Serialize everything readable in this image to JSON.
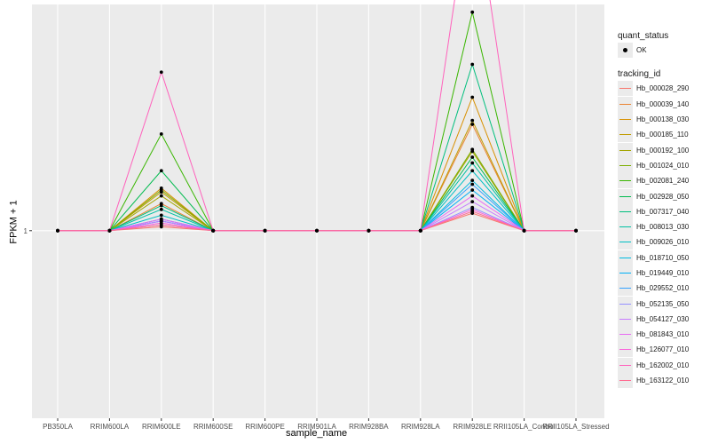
{
  "chart_data": {
    "type": "line",
    "xlabel": "sample_name",
    "ylabel": "FPKM + 1",
    "categories": [
      "PB350LA",
      "RRIM600LA",
      "RRIM600LE",
      "RRIM600SE",
      "RRIM600PE",
      "RRIM901LA",
      "RRIM928BA",
      "RRIM928LA",
      "RRIM928LE",
      "RRII105LA_Control",
      "RRII105LA_Stressed"
    ],
    "y_ticks": [
      {
        "value": 1,
        "label": "1"
      }
    ],
    "ylim": [
      0.03,
      2.17
    ],
    "grid": true,
    "legends": {
      "quant_status": {
        "title": "quant_status",
        "entries": [
          "OK"
        ]
      },
      "tracking_id": {
        "title": "tracking_id",
        "entries": [
          "Hb_000028_290",
          "Hb_000039_140",
          "Hb_000138_030",
          "Hb_000185_110",
          "Hb_000192_100",
          "Hb_001024_010",
          "Hb_002081_240",
          "Hb_002928_050",
          "Hb_007317_040",
          "Hb_008013_030",
          "Hb_009026_010",
          "Hb_018710_050",
          "Hb_019449_010",
          "Hb_029552_010",
          "Hb_052135_050",
          "Hb_054127_030",
          "Hb_081843_010",
          "Hb_126077_010",
          "Hb_162002_010",
          "Hb_163122_010"
        ]
      }
    },
    "legend_position": "right",
    "series": [
      {
        "name": "Hb_000028_290",
        "color": "#F8766D",
        "values": [
          1,
          1,
          1.02,
          1,
          1,
          1,
          1,
          1,
          1.09,
          1,
          1
        ]
      },
      {
        "name": "Hb_000039_140",
        "color": "#EA8331",
        "values": [
          1,
          1,
          1.14,
          1,
          1,
          1,
          1,
          1,
          1.55,
          1,
          1
        ]
      },
      {
        "name": "Hb_000138_030",
        "color": "#D89000",
        "values": [
          1,
          1,
          1.22,
          1,
          1,
          1,
          1,
          1,
          1.69,
          1,
          1
        ]
      },
      {
        "name": "Hb_000185_110",
        "color": "#C09B00",
        "values": [
          1,
          1,
          1.2,
          1,
          1,
          1,
          1,
          1,
          1.57,
          1,
          1
        ]
      },
      {
        "name": "Hb_000192_100",
        "color": "#A3A500",
        "values": [
          1,
          1,
          1.18,
          1,
          1,
          1,
          1,
          1,
          1.41,
          1,
          1
        ]
      },
      {
        "name": "Hb_001024_010",
        "color": "#7CAE00",
        "values": [
          1,
          1,
          1.21,
          1,
          1,
          1,
          1,
          1,
          1.42,
          1,
          1
        ]
      },
      {
        "name": "Hb_002081_240",
        "color": "#39B600",
        "values": [
          1,
          1,
          1.5,
          1,
          1,
          1,
          1,
          1,
          2.13,
          1,
          1
        ]
      },
      {
        "name": "Hb_002928_050",
        "color": "#00BB4E",
        "values": [
          1,
          1,
          1.31,
          1,
          1,
          1,
          1,
          1,
          1.38,
          1,
          1
        ]
      },
      {
        "name": "Hb_007317_040",
        "color": "#00BF7D",
        "values": [
          1,
          1,
          1.13,
          1,
          1,
          1,
          1,
          1,
          1.86,
          1,
          1
        ]
      },
      {
        "name": "Hb_008013_030",
        "color": "#00C1A3",
        "values": [
          1,
          1,
          1.11,
          1,
          1,
          1,
          1,
          1,
          1.35,
          1,
          1
        ]
      },
      {
        "name": "Hb_009026_010",
        "color": "#00BFC4",
        "values": [
          1,
          1,
          1.08,
          1,
          1,
          1,
          1,
          1,
          1.31,
          1,
          1
        ]
      },
      {
        "name": "Hb_018710_050",
        "color": "#00BAE0",
        "values": [
          1,
          1,
          1.06,
          1,
          1,
          1,
          1,
          1,
          1.26,
          1,
          1
        ]
      },
      {
        "name": "Hb_019449_010",
        "color": "#00B0F6",
        "values": [
          1,
          1,
          1.05,
          1,
          1,
          1,
          1,
          1,
          1.21,
          1,
          1
        ]
      },
      {
        "name": "Hb_029552_010",
        "color": "#35A2FF",
        "values": [
          1,
          1,
          1.05,
          1,
          1,
          1,
          1,
          1,
          1.24,
          1,
          1
        ]
      },
      {
        "name": "Hb_052135_050",
        "color": "#9590FF",
        "values": [
          1,
          1,
          1.03,
          1,
          1,
          1,
          1,
          1,
          1.12,
          1,
          1
        ]
      },
      {
        "name": "Hb_054127_030",
        "color": "#C77CFF",
        "values": [
          1,
          1,
          1.05,
          1,
          1,
          1,
          1,
          1,
          1.15,
          1,
          1
        ]
      },
      {
        "name": "Hb_081843_010",
        "color": "#E76BF3",
        "values": [
          1,
          1,
          1.06,
          1,
          1,
          1,
          1,
          1,
          1.18,
          1,
          1
        ]
      },
      {
        "name": "Hb_126077_010",
        "color": "#FA62DB",
        "values": [
          1,
          1,
          1.04,
          1,
          1,
          1,
          1,
          1,
          1.11,
          1,
          1
        ]
      },
      {
        "name": "Hb_162002_010",
        "color": "#FF62BC",
        "values": [
          1,
          1,
          1.82,
          1,
          1,
          1,
          1,
          1,
          2.81,
          1,
          1
        ]
      },
      {
        "name": "Hb_163122_010",
        "color": "#FF6C91",
        "values": [
          1,
          1,
          1.03,
          1,
          1,
          1,
          1,
          1,
          1.1,
          1,
          1
        ]
      }
    ]
  }
}
